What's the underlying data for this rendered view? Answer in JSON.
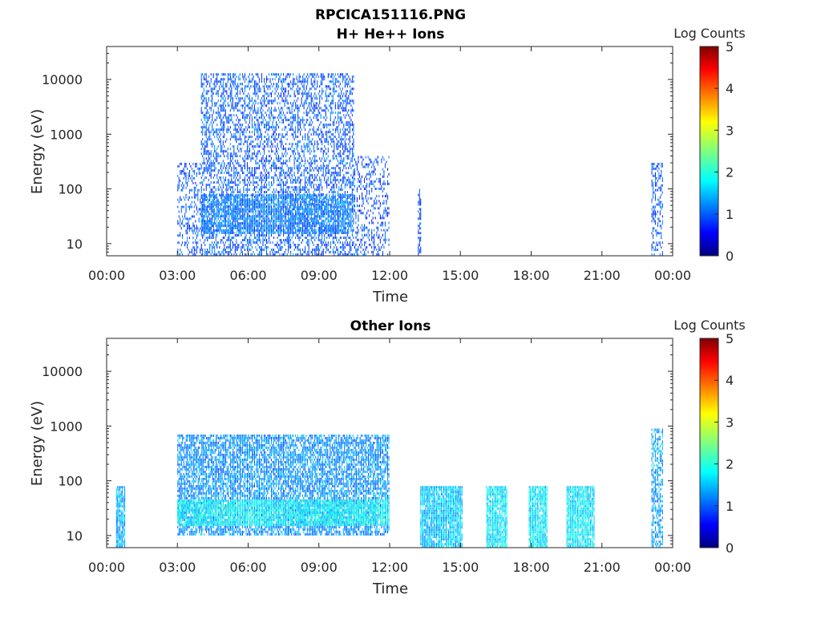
{
  "figure": {
    "title_line1": "RPCICA151116.PNG"
  },
  "chart_data": [
    {
      "type": "heatmap",
      "title": "H+ He++ Ions",
      "xlabel": "Time",
      "ylabel": "Energy (eV)",
      "x_ticks": [
        "00:00",
        "03:00",
        "06:00",
        "09:00",
        "12:00",
        "15:00",
        "18:00",
        "21:00",
        "00:00"
      ],
      "x_range_hours": [
        0,
        24
      ],
      "y_scale": "log",
      "y_ticks": [
        "10",
        "100",
        "1000",
        "10000"
      ],
      "y_tick_values": [
        10,
        100,
        1000,
        10000
      ],
      "y_range": [
        6,
        40000
      ],
      "colorbar": {
        "label": "Log Counts",
        "ticks": [
          "0",
          "1",
          "2",
          "3",
          "4",
          "5"
        ],
        "range": [
          0,
          5
        ],
        "colormap": "jet"
      },
      "regions": [
        {
          "t_start": 3.0,
          "t_end": 4.0,
          "e_min": 6,
          "e_max": 300,
          "level": 0.45,
          "density": 0.35
        },
        {
          "t_start": 4.0,
          "t_end": 10.5,
          "e_min": 6,
          "e_max": 13000,
          "level": 0.5,
          "density": 0.45
        },
        {
          "t_start": 4.0,
          "t_end": 10.5,
          "e_min": 15,
          "e_max": 80,
          "level": 0.7,
          "density": 0.7
        },
        {
          "t_start": 10.5,
          "t_end": 12.0,
          "e_min": 6,
          "e_max": 400,
          "level": 0.4,
          "density": 0.3
        },
        {
          "t_start": 13.2,
          "t_end": 13.35,
          "e_min": 6,
          "e_max": 100,
          "level": 0.4,
          "density": 0.5
        },
        {
          "t_start": 23.1,
          "t_end": 23.6,
          "e_min": 6,
          "e_max": 300,
          "level": 0.5,
          "density": 0.4
        }
      ]
    },
    {
      "type": "heatmap",
      "title": "Other Ions",
      "xlabel": "Time",
      "ylabel": "Energy (eV)",
      "x_ticks": [
        "00:00",
        "03:00",
        "06:00",
        "09:00",
        "12:00",
        "15:00",
        "18:00",
        "21:00",
        "00:00"
      ],
      "x_range_hours": [
        0,
        24
      ],
      "y_scale": "log",
      "y_ticks": [
        "10",
        "100",
        "1000",
        "10000"
      ],
      "y_tick_values": [
        10,
        100,
        1000,
        10000
      ],
      "y_range": [
        6,
        40000
      ],
      "colorbar": {
        "label": "Log Counts",
        "ticks": [
          "0",
          "1",
          "2",
          "3",
          "4",
          "5"
        ],
        "range": [
          0,
          5
        ],
        "colormap": "jet"
      },
      "regions": [
        {
          "t_start": 0.4,
          "t_end": 0.8,
          "e_min": 6,
          "e_max": 80,
          "level": 1.0,
          "density": 0.9
        },
        {
          "t_start": 3.0,
          "t_end": 12.0,
          "e_min": 10,
          "e_max": 700,
          "level": 0.8,
          "density": 0.7
        },
        {
          "t_start": 3.0,
          "t_end": 12.0,
          "e_min": 15,
          "e_max": 45,
          "level": 1.4,
          "density": 0.85
        },
        {
          "t_start": 13.3,
          "t_end": 15.1,
          "e_min": 6,
          "e_max": 80,
          "level": 1.1,
          "density": 0.9
        },
        {
          "t_start": 16.1,
          "t_end": 17.0,
          "e_min": 6,
          "e_max": 80,
          "level": 1.3,
          "density": 0.9
        },
        {
          "t_start": 17.9,
          "t_end": 18.7,
          "e_min": 6,
          "e_max": 80,
          "level": 1.3,
          "density": 0.9
        },
        {
          "t_start": 19.5,
          "t_end": 20.7,
          "e_min": 6,
          "e_max": 80,
          "level": 1.3,
          "density": 0.9
        },
        {
          "t_start": 23.1,
          "t_end": 23.6,
          "e_min": 6,
          "e_max": 900,
          "level": 0.9,
          "density": 0.6
        }
      ]
    }
  ]
}
